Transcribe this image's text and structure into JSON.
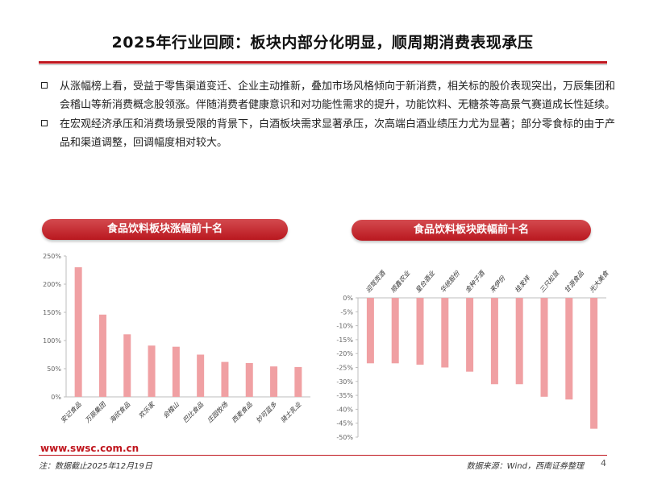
{
  "title": "2025年行业回顾：板块内部分化明显，顺周期消费表现承压",
  "bullets": [
    "从涨幅榜上看，受益于零售渠道变迁、企业主动推新，叠加市场风格倾向于新消费，相关标的股价表现突出，万辰集团和会稽山等新消费概念股领涨。伴随消费者健康意识和对功能性需求的提升，功能饮料、无糖茶等高景气赛道成长性延续。",
    "在宏观经济承压和消费场景受限的背景下，白酒板块需求显著承压，次高端白酒业绩压力尤为显著；部分零食标的由于产品和渠道调整，回调幅度相对较大。"
  ],
  "colors": {
    "accent": "#c0161e",
    "bar": "#f0a0a3"
  },
  "chart_data": [
    {
      "type": "bar",
      "title": "食品饮料板块涨幅前十名",
      "categories": [
        "安记食品",
        "万辰集团",
        "海欣食品",
        "欢乐家",
        "会稽山",
        "巴比食品",
        "庄园牧场",
        "西麦食品",
        "妙可蓝多",
        "骑士乳业"
      ],
      "values": [
        230,
        146,
        111,
        91,
        89,
        75,
        62,
        60,
        54,
        53
      ],
      "unit": "%",
      "ylim": [
        0,
        250
      ],
      "yticks": [
        "0%",
        "50%",
        "100%",
        "150%",
        "200%",
        "250%"
      ],
      "xlabel": "",
      "ylabel": ""
    },
    {
      "type": "bar",
      "title": "食品饮料板块跌幅前十名",
      "categories": [
        "迎驾贡酒",
        "顺鑫农业",
        "皇台酒业",
        "华统股份",
        "金种子酒",
        "来伊份",
        "桂发祥",
        "三只松鼠",
        "甘源食品",
        "光大美食"
      ],
      "values": [
        -23.5,
        -23.5,
        -24,
        -25,
        -26.5,
        -31,
        -31,
        -35.5,
        -36.5,
        -47
      ],
      "unit": "%",
      "ylim": [
        -50,
        0
      ],
      "yticks": [
        "0%",
        "-5%",
        "-10%",
        "-15%",
        "-20%",
        "-25%",
        "-30%",
        "-35%",
        "-40%",
        "-45%",
        "-50%"
      ],
      "xlabel": "",
      "ylabel": ""
    }
  ],
  "footer": {
    "url": "www.swsc.com.cn",
    "note": "注：数据截止2025年12月19日",
    "source": "数据来源：Wind，西南证券整理",
    "page": "4"
  }
}
